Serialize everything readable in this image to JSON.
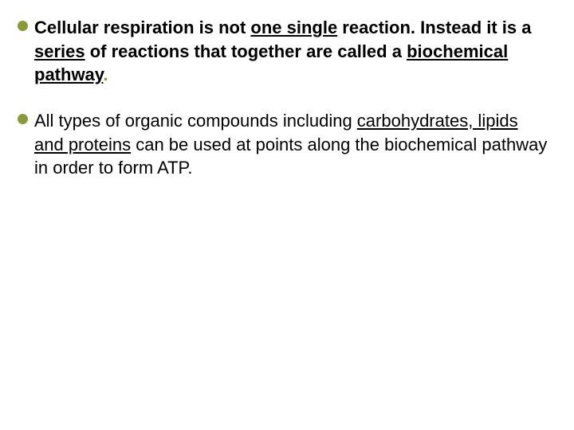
{
  "bullets": [
    {
      "marker_color": "#8a9a3b",
      "font_size": 22,
      "font_weight": "bold",
      "color": "#000000",
      "segments": [
        {
          "text": "Cellular respiration is not ",
          "underline": false
        },
        {
          "text": "one single",
          "underline": true
        },
        {
          "text": " reaction. Instead it is a ",
          "underline": false
        },
        {
          "text": "series",
          "underline": true
        },
        {
          "text": " of reactions that together are called a ",
          "underline": false
        },
        {
          "text": "biochemical pathway",
          "underline": true
        },
        {
          "text": ".",
          "underline": false,
          "color": "#8a9a3b"
        }
      ]
    },
    {
      "marker_color": "#8a9a3b",
      "font_size": 22,
      "font_weight": "normal",
      "color": "#000000",
      "segments": [
        {
          "text": "All types of organic compounds including ",
          "underline": false
        },
        {
          "text": "carbohydrates, lipids and proteins",
          "underline": true
        },
        {
          "text": " can be used at points along the biochemical pathway in order to form ATP.",
          "underline": false
        }
      ]
    }
  ]
}
